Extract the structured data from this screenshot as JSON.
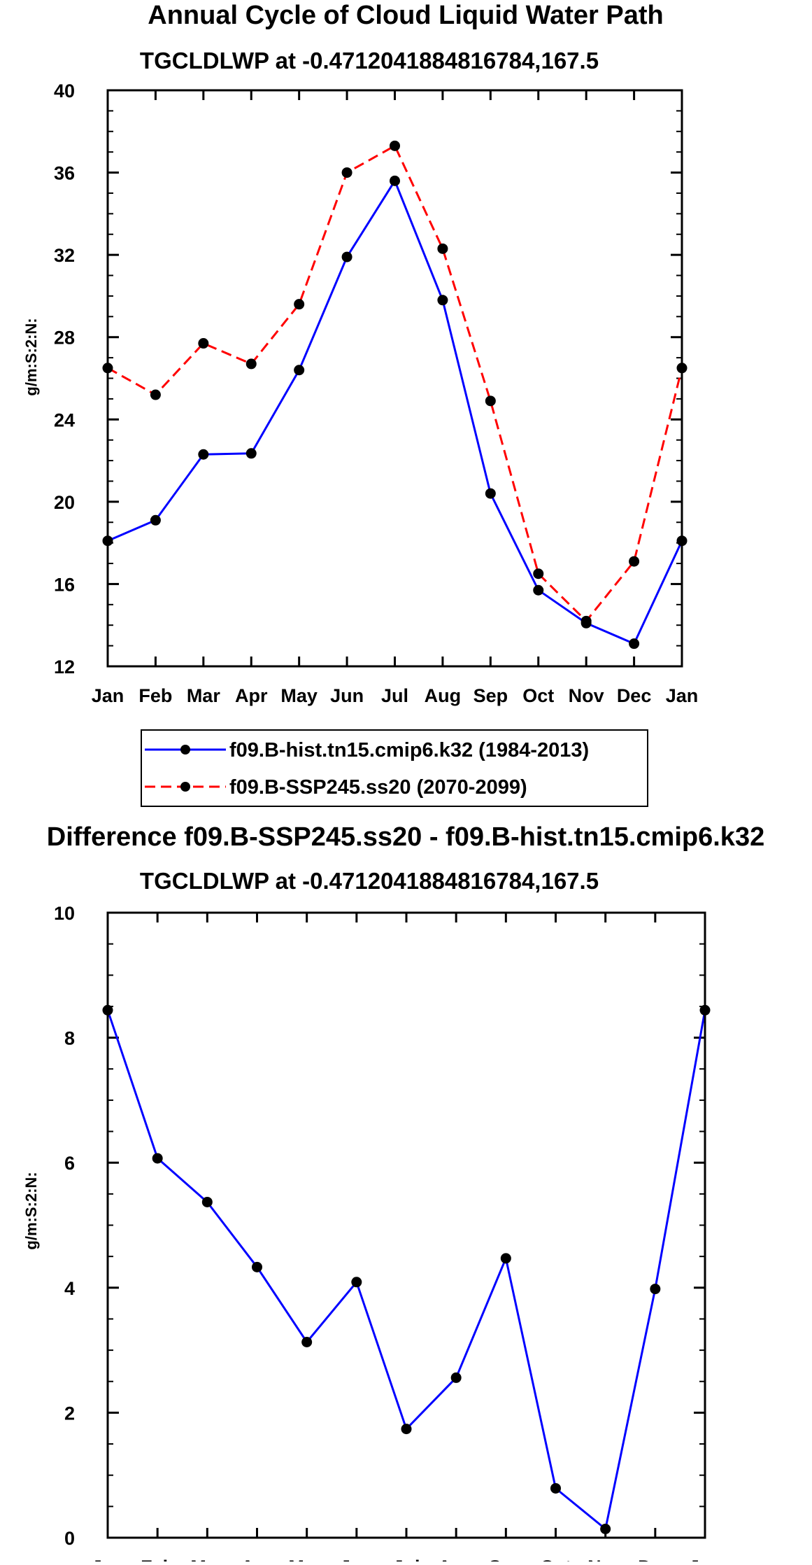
{
  "chart_data": [
    {
      "type": "line",
      "title": "Annual Cycle of Cloud Liquid Water Path",
      "subtitle": "TGCLDLWP at -0.4712041884816784,167.5",
      "xlabel": "",
      "ylabel": "g/m:S:2:N:",
      "categories": [
        "Jan",
        "Feb",
        "Mar",
        "Apr",
        "May",
        "Jun",
        "Jul",
        "Aug",
        "Sep",
        "Oct",
        "Nov",
        "Dec",
        "Jan"
      ],
      "ylim": [
        12,
        40
      ],
      "yticks": [
        12,
        16,
        20,
        24,
        28,
        32,
        36,
        40
      ],
      "ytick_labels": [
        "12",
        "16",
        "20",
        "24",
        "28",
        "32",
        "36",
        "40"
      ],
      "series": [
        {
          "name": "f09.B-hist.tn15.cmip6.k32 (1984-2013)",
          "color": "#0000ff",
          "dash": "solid",
          "values": [
            18.1,
            19.1,
            22.3,
            22.35,
            26.4,
            31.9,
            35.6,
            29.8,
            20.4,
            15.7,
            14.1,
            13.1,
            18.1
          ]
        },
        {
          "name": "f09.B-SSP245.ss20 (2070-2099)",
          "color": "#ff0000",
          "dash": "dashed",
          "values": [
            26.5,
            25.2,
            27.7,
            26.7,
            29.6,
            36.0,
            37.3,
            32.3,
            24.9,
            16.5,
            14.2,
            17.1,
            26.5
          ]
        }
      ],
      "legend": [
        "f09.B-hist.tn15.cmip6.k32 (1984-2013)",
        "f09.B-SSP245.ss20 (2070-2099)"
      ],
      "legend_position": "bottom-center"
    },
    {
      "type": "line",
      "title": "Difference f09.B-SSP245.ss20 - f09.B-hist.tn15.cmip6.k32",
      "subtitle": "TGCLDLWP at -0.4712041884816784,167.5",
      "xlabel": "",
      "ylabel": "g/m:S:2:N:",
      "categories": [
        "Jan",
        "Feb",
        "Mar",
        "Apr",
        "May",
        "Jun",
        "Jul",
        "Aug",
        "Sep",
        "Oct",
        "Nov",
        "Dec",
        "Jan"
      ],
      "ylim": [
        0,
        10
      ],
      "yticks": [
        0,
        2,
        4,
        6,
        8,
        10
      ],
      "ytick_labels": [
        "0",
        "2",
        "4",
        "6",
        "8",
        "10"
      ],
      "series": [
        {
          "name": "Difference",
          "color": "#0000ff",
          "dash": "solid",
          "values": [
            8.44,
            6.07,
            5.37,
            4.33,
            3.13,
            4.09,
            1.74,
            2.56,
            4.47,
            0.79,
            0.14,
            3.98,
            8.44
          ]
        }
      ]
    }
  ]
}
